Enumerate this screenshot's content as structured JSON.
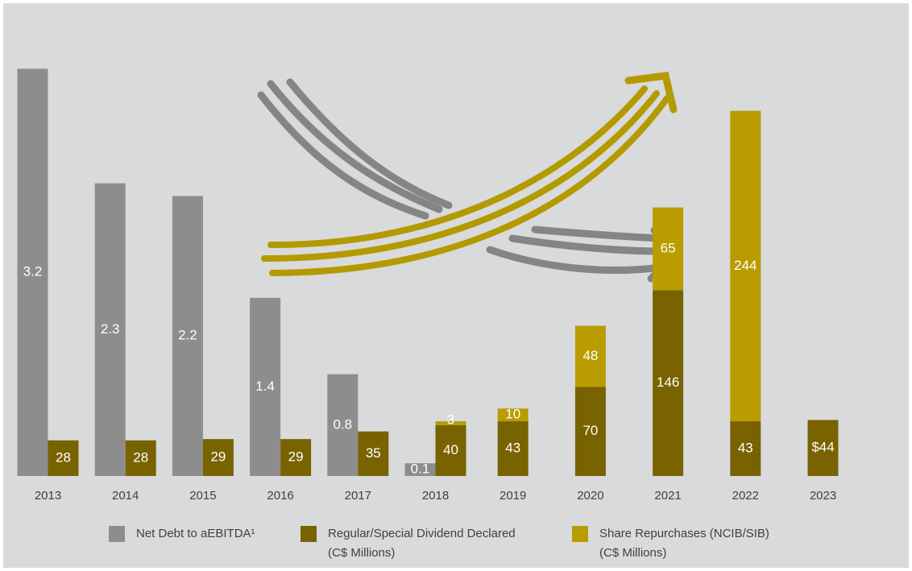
{
  "colors": {
    "background": "#d9dadc",
    "net_debt": "#8d8d8d",
    "dividend": "#786300",
    "repurchase": "#b89c00",
    "arrow_gray": "#858585",
    "arrow_gold": "#b39a00",
    "text": "#404040",
    "label_text": "#ffffff"
  },
  "chart_data": {
    "type": "bar",
    "categories": [
      "2013",
      "2014",
      "2015",
      "2016",
      "2017",
      "2018",
      "2019",
      "2020",
      "2021",
      "2022",
      "2023"
    ],
    "series": [
      {
        "name": "Net Debt to aEBITDA¹",
        "values": [
          3.2,
          2.3,
          2.2,
          1.4,
          0.8,
          0.1,
          null,
          null,
          null,
          null,
          null
        ],
        "labels": [
          "3.2",
          "2.3",
          "2.2",
          "1.4",
          "0.8",
          "0.1",
          "",
          "",
          "",
          "",
          ""
        ]
      },
      {
        "name": "Regular/Special Dividend Declared (C$ Millions)",
        "values": [
          28,
          28,
          29,
          29,
          35,
          40,
          43,
          70,
          146,
          43,
          44
        ],
        "labels": [
          "28",
          "28",
          "29",
          "29",
          "35",
          "40",
          "43",
          "70",
          "146",
          "43",
          "$44"
        ]
      },
      {
        "name": "Share Repurchases (NCIB/SIB) (C$ Millions)",
        "values": [
          null,
          null,
          null,
          null,
          null,
          3,
          10,
          48,
          65,
          244,
          null
        ],
        "labels": [
          "",
          "",
          "",
          "",
          "",
          "3",
          "10",
          "48",
          "65",
          "244",
          ""
        ]
      }
    ],
    "stacked_series": [
      "Regular/Special Dividend Declared (C$ Millions)",
      "Share Repurchases (NCIB/SIB) (C$ Millions)"
    ],
    "legend": {
      "position": "bottom",
      "items": [
        {
          "lines": [
            "Net Debt to aEBITDA¹"
          ],
          "color_key": "net_debt"
        },
        {
          "lines": [
            "Regular/Special Dividend Declared",
            "(C$ Millions)"
          ],
          "color_key": "dividend"
        },
        {
          "lines": [
            "Share Repurchases (NCIB/SIB)",
            "(C$ Millions)"
          ],
          "color_key": "repurchase"
        }
      ]
    },
    "grid": false
  }
}
